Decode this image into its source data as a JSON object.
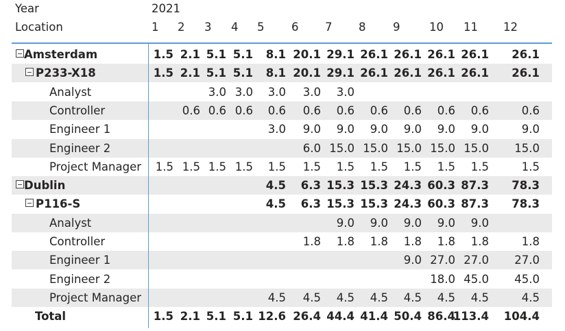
{
  "header": {
    "year_label": "Year",
    "year_value": "2021",
    "location_label": "Location",
    "months": [
      "1",
      "2",
      "3",
      "4",
      "5",
      "6",
      "7",
      "8",
      "9",
      "10",
      "11",
      "12"
    ]
  },
  "rows": [
    {
      "label": "Amsterdam",
      "level": 0,
      "bold": true,
      "toggle": true,
      "values": [
        "1.5",
        "2.1",
        "5.1",
        "5.1",
        "8.1",
        "20.1",
        "29.1",
        "26.1",
        "26.1",
        "26.1",
        "26.1",
        "26.1"
      ]
    },
    {
      "label": "P233-X18",
      "level": 1,
      "bold": true,
      "toggle": true,
      "values": [
        "1.5",
        "2.1",
        "5.1",
        "5.1",
        "8.1",
        "20.1",
        "29.1",
        "26.1",
        "26.1",
        "26.1",
        "26.1",
        "26.1"
      ]
    },
    {
      "label": "Analyst",
      "level": 2,
      "bold": false,
      "toggle": false,
      "values": [
        "",
        "",
        "3.0",
        "3.0",
        "3.0",
        "3.0",
        "3.0",
        "",
        "",
        "",
        "",
        ""
      ]
    },
    {
      "label": "Controller",
      "level": 2,
      "bold": false,
      "toggle": false,
      "values": [
        "",
        "0.6",
        "0.6",
        "0.6",
        "0.6",
        "0.6",
        "0.6",
        "0.6",
        "0.6",
        "0.6",
        "0.6",
        "0.6"
      ]
    },
    {
      "label": "Engineer 1",
      "level": 2,
      "bold": false,
      "toggle": false,
      "values": [
        "",
        "",
        "",
        "",
        "3.0",
        "9.0",
        "9.0",
        "9.0",
        "9.0",
        "9.0",
        "9.0",
        "9.0"
      ]
    },
    {
      "label": "Engineer 2",
      "level": 2,
      "bold": false,
      "toggle": false,
      "values": [
        "",
        "",
        "",
        "",
        "",
        "6.0",
        "15.0",
        "15.0",
        "15.0",
        "15.0",
        "15.0",
        "15.0"
      ]
    },
    {
      "label": "Project Manager",
      "level": 2,
      "bold": false,
      "toggle": false,
      "values": [
        "1.5",
        "1.5",
        "1.5",
        "1.5",
        "1.5",
        "1.5",
        "1.5",
        "1.5",
        "1.5",
        "1.5",
        "1.5",
        "1.5"
      ]
    },
    {
      "label": "Dublin",
      "level": 0,
      "bold": true,
      "toggle": true,
      "values": [
        "",
        "",
        "",
        "",
        "4.5",
        "6.3",
        "15.3",
        "15.3",
        "24.3",
        "60.3",
        "87.3",
        "78.3"
      ]
    },
    {
      "label": "P116-S",
      "level": 1,
      "bold": true,
      "toggle": true,
      "values": [
        "",
        "",
        "",
        "",
        "4.5",
        "6.3",
        "15.3",
        "15.3",
        "24.3",
        "60.3",
        "87.3",
        "78.3"
      ]
    },
    {
      "label": "Analyst",
      "level": 2,
      "bold": false,
      "toggle": false,
      "values": [
        "",
        "",
        "",
        "",
        "",
        "",
        "9.0",
        "9.0",
        "9.0",
        "9.0",
        "9.0",
        ""
      ]
    },
    {
      "label": "Controller",
      "level": 2,
      "bold": false,
      "toggle": false,
      "values": [
        "",
        "",
        "",
        "",
        "",
        "1.8",
        "1.8",
        "1.8",
        "1.8",
        "1.8",
        "1.8",
        "1.8"
      ]
    },
    {
      "label": "Engineer 1",
      "level": 2,
      "bold": false,
      "toggle": false,
      "values": [
        "",
        "",
        "",
        "",
        "",
        "",
        "",
        "",
        "9.0",
        "27.0",
        "27.0",
        "27.0"
      ]
    },
    {
      "label": "Engineer 2",
      "level": 2,
      "bold": false,
      "toggle": false,
      "values": [
        "",
        "",
        "",
        "",
        "",
        "",
        "",
        "",
        "",
        "18.0",
        "45.0",
        "45.0"
      ]
    },
    {
      "label": "Project Manager",
      "level": 2,
      "bold": false,
      "toggle": false,
      "values": [
        "",
        "",
        "",
        "",
        "4.5",
        "4.5",
        "4.5",
        "4.5",
        "4.5",
        "4.5",
        "4.5",
        "4.5"
      ]
    },
    {
      "label": "Total",
      "level": 0,
      "bold": true,
      "toggle": false,
      "values": [
        "1.5",
        "2.1",
        "5.1",
        "5.1",
        "12.6",
        "26.4",
        "44.4",
        "41.4",
        "50.4",
        "86.4",
        "113.4",
        "104.4"
      ]
    }
  ],
  "colors": {
    "accent": "#5b9bd5",
    "shade": "#ebeaea",
    "text": "#252423"
  }
}
